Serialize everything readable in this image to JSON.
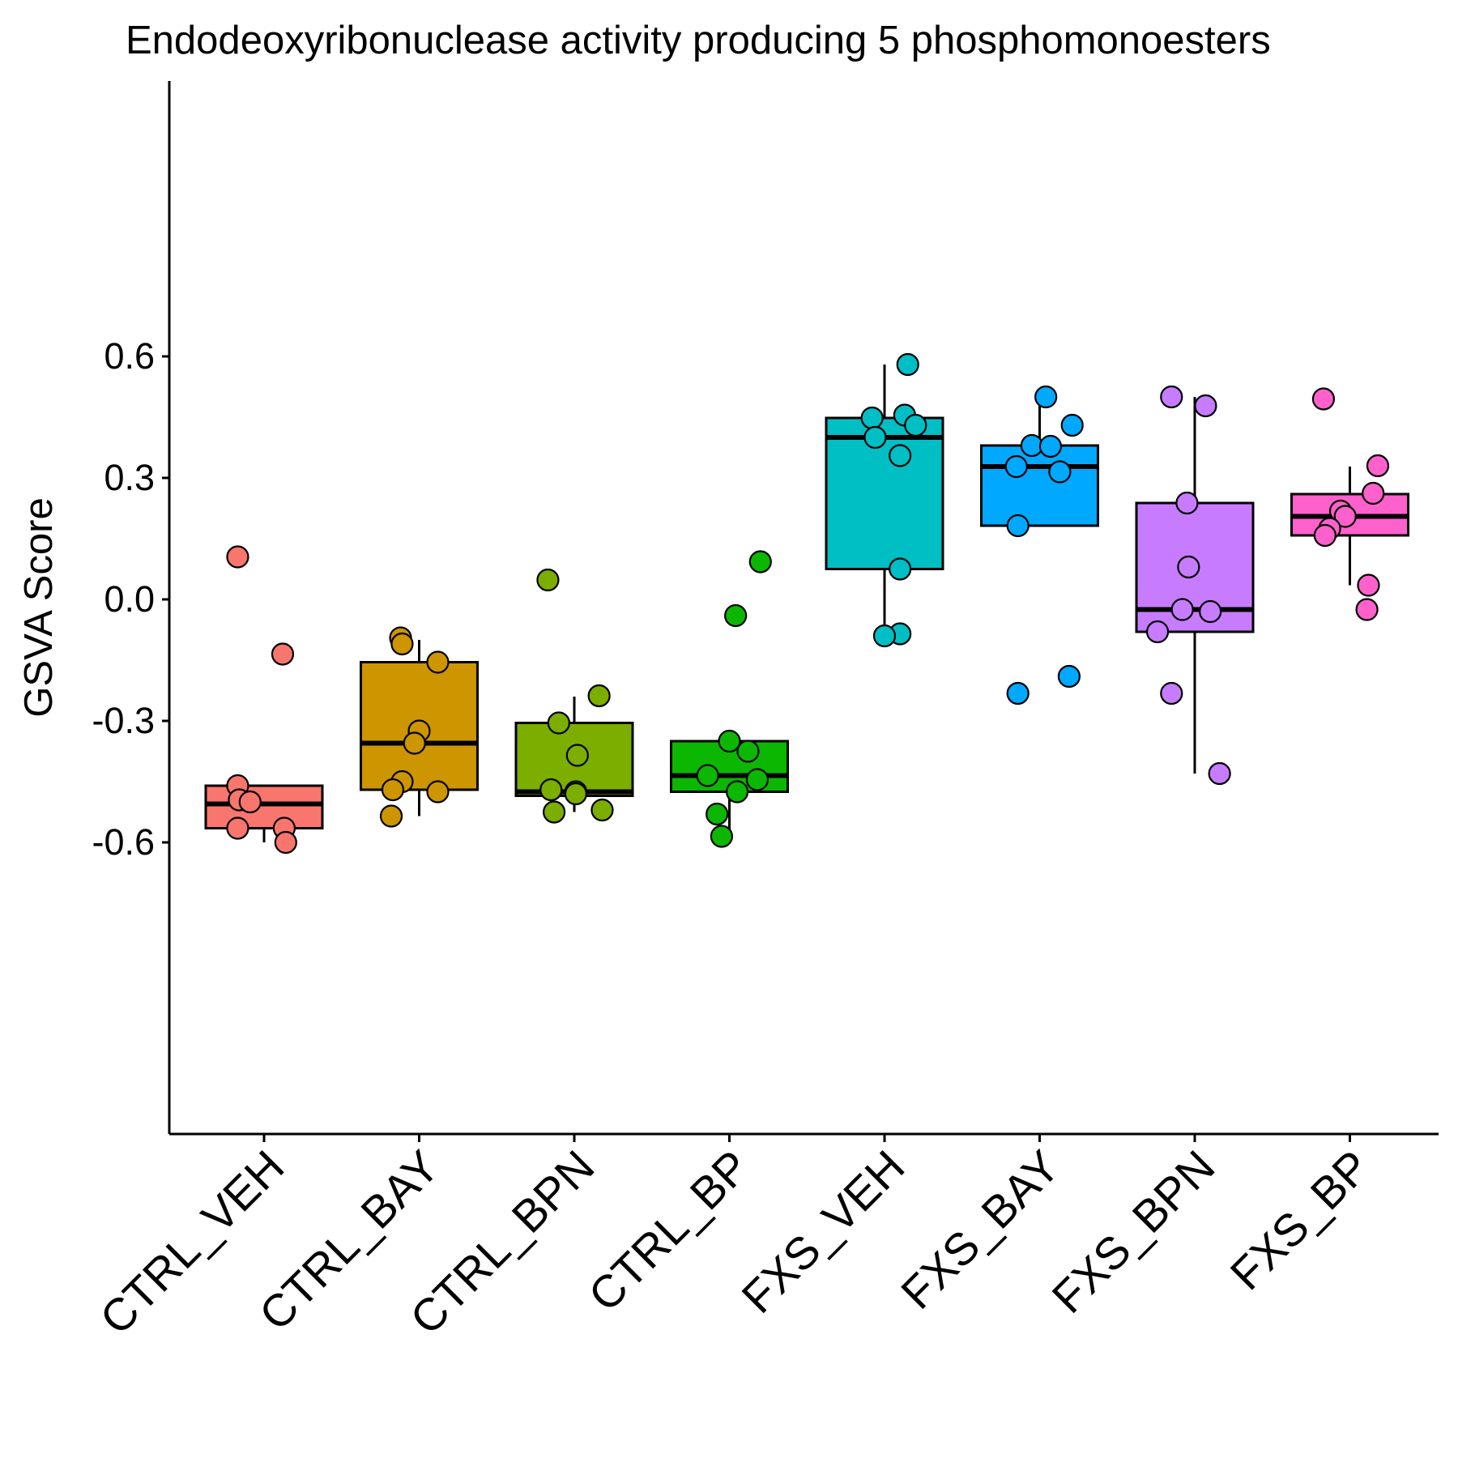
{
  "chart_data": {
    "type": "box",
    "title": "Endodeoxyribonuclease activity producing 5 phosphomonoesters",
    "xlabel": "",
    "ylabel": "GSVA Score",
    "ylim": [
      -0.66,
      0.64
    ],
    "yticks": [
      -0.6,
      -0.3,
      0.0,
      0.3,
      0.6
    ],
    "ytick_labels": [
      "-0.6",
      "-0.3",
      "0.0",
      "0.3",
      "0.6"
    ],
    "grid": false,
    "legend": "none",
    "categories": [
      "CTRL_VEH",
      "CTRL_BAY",
      "CTRL_BPN",
      "CTRL_BP",
      "FXS_VEH",
      "FXS_BAY",
      "FXS_BPN",
      "FXS_BP"
    ],
    "colors": [
      "#F8766D",
      "#CD9600",
      "#7CAE00",
      "#0CB702",
      "#00BFC4",
      "#00A9FF",
      "#C77CFF",
      "#FF61CC"
    ],
    "box_stats": [
      {
        "min": -0.6,
        "q1": -0.565,
        "median": -0.505,
        "q3": -0.46,
        "max": -0.46
      },
      {
        "min": -0.535,
        "q1": -0.47,
        "median": -0.355,
        "q3": -0.155,
        "max": -0.1
      },
      {
        "min": -0.525,
        "q1": -0.485,
        "median": -0.475,
        "q3": -0.305,
        "max": -0.24
      },
      {
        "min": -0.585,
        "q1": -0.475,
        "median": -0.435,
        "q3": -0.35,
        "max": -0.35
      },
      {
        "min": -0.09,
        "q1": 0.075,
        "median": 0.4,
        "q3": 0.448,
        "max": 0.58
      },
      {
        "min": 0.18,
        "q1": 0.182,
        "median": 0.328,
        "q3": 0.38,
        "max": 0.5
      },
      {
        "min": -0.43,
        "q1": -0.08,
        "median": -0.025,
        "q3": 0.238,
        "max": 0.5
      },
      {
        "min": 0.035,
        "q1": 0.158,
        "median": 0.205,
        "q3": 0.26,
        "max": 0.328
      }
    ],
    "points": [
      [
        {
          "x": -0.17,
          "y": 0.105
        },
        {
          "x": 0.12,
          "y": -0.135
        },
        {
          "x": -0.17,
          "y": -0.46
        },
        {
          "x": -0.16,
          "y": -0.495
        },
        {
          "x": -0.09,
          "y": -0.5
        },
        {
          "x": -0.17,
          "y": -0.565
        },
        {
          "x": 0.13,
          "y": -0.565
        },
        {
          "x": 0.14,
          "y": -0.6
        }
      ],
      [
        {
          "x": -0.12,
          "y": -0.095
        },
        {
          "x": -0.11,
          "y": -0.11
        },
        {
          "x": 0.12,
          "y": -0.155
        },
        {
          "x": 0.0,
          "y": -0.325
        },
        {
          "x": -0.03,
          "y": -0.355
        },
        {
          "x": -0.11,
          "y": -0.45
        },
        {
          "x": -0.17,
          "y": -0.47
        },
        {
          "x": 0.12,
          "y": -0.475
        },
        {
          "x": -0.18,
          "y": -0.535
        }
      ],
      [
        {
          "x": -0.17,
          "y": 0.048
        },
        {
          "x": 0.16,
          "y": -0.238
        },
        {
          "x": -0.1,
          "y": -0.305
        },
        {
          "x": 0.02,
          "y": -0.385
        },
        {
          "x": -0.15,
          "y": -0.47
        },
        {
          "x": 0.01,
          "y": -0.475
        },
        {
          "x": 0.01,
          "y": -0.48
        },
        {
          "x": -0.13,
          "y": -0.525
        },
        {
          "x": 0.18,
          "y": -0.52
        }
      ],
      [
        {
          "x": 0.2,
          "y": 0.093
        },
        {
          "x": 0.04,
          "y": -0.04
        },
        {
          "x": 0.0,
          "y": -0.35
        },
        {
          "x": 0.12,
          "y": -0.375
        },
        {
          "x": -0.14,
          "y": -0.435
        },
        {
          "x": 0.18,
          "y": -0.445
        },
        {
          "x": 0.05,
          "y": -0.475
        },
        {
          "x": -0.08,
          "y": -0.53
        },
        {
          "x": -0.05,
          "y": -0.585
        }
      ],
      [
        {
          "x": 0.15,
          "y": 0.58
        },
        {
          "x": 0.13,
          "y": 0.455
        },
        {
          "x": -0.08,
          "y": 0.448
        },
        {
          "x": 0.2,
          "y": 0.43
        },
        {
          "x": -0.06,
          "y": 0.4
        },
        {
          "x": 0.1,
          "y": 0.355
        },
        {
          "x": 0.1,
          "y": 0.075
        },
        {
          "x": 0.1,
          "y": -0.085
        },
        {
          "x": 0.0,
          "y": -0.09
        }
      ],
      [
        {
          "x": 0.04,
          "y": 0.5
        },
        {
          "x": 0.21,
          "y": 0.43
        },
        {
          "x": -0.05,
          "y": 0.38
        },
        {
          "x": 0.07,
          "y": 0.378
        },
        {
          "x": -0.15,
          "y": 0.328
        },
        {
          "x": 0.13,
          "y": 0.315
        },
        {
          "x": -0.14,
          "y": 0.182
        },
        {
          "x": 0.19,
          "y": -0.19
        },
        {
          "x": -0.14,
          "y": -0.232
        }
      ],
      [
        {
          "x": -0.15,
          "y": 0.5
        },
        {
          "x": 0.07,
          "y": 0.478
        },
        {
          "x": -0.05,
          "y": 0.238
        },
        {
          "x": -0.04,
          "y": 0.08
        },
        {
          "x": -0.08,
          "y": -0.025
        },
        {
          "x": 0.1,
          "y": -0.03
        },
        {
          "x": -0.24,
          "y": -0.08
        },
        {
          "x": -0.15,
          "y": -0.232
        },
        {
          "x": 0.16,
          "y": -0.43
        }
      ],
      [
        {
          "x": -0.17,
          "y": 0.495
        },
        {
          "x": 0.18,
          "y": 0.33
        },
        {
          "x": 0.15,
          "y": 0.262
        },
        {
          "x": -0.06,
          "y": 0.218
        },
        {
          "x": -0.03,
          "y": 0.205
        },
        {
          "x": -0.13,
          "y": 0.175
        },
        {
          "x": -0.16,
          "y": 0.158
        },
        {
          "x": 0.12,
          "y": 0.035
        },
        {
          "x": 0.11,
          "y": -0.025
        }
      ]
    ]
  }
}
